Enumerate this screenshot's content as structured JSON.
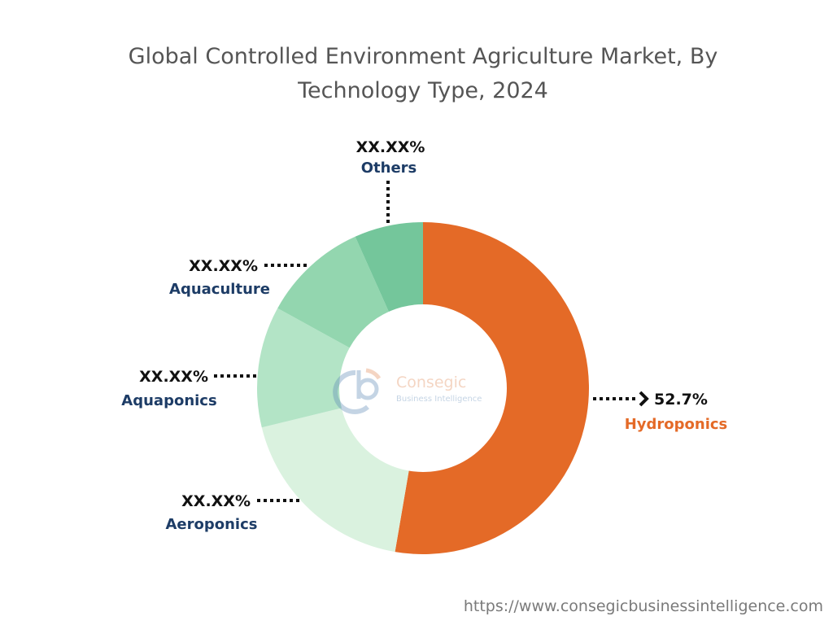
{
  "chart_data": {
    "type": "pie",
    "variant": "donut",
    "title_line1": "Global Controlled Environment Agriculture Market, By",
    "title_line2": "Technology Type, 2024",
    "slices": [
      {
        "name": "Hydroponics",
        "value": 52.7,
        "label": "52.7%",
        "color": "#E46A27",
        "label_color": "#E46A27"
      },
      {
        "name": "Aeroponics",
        "value": 18.5,
        "label": "XX.XX%",
        "color": "#DAF2DF",
        "label_color": "#1d3c66"
      },
      {
        "name": "Aquaponics",
        "value": 11.8,
        "label": "XX.XX%",
        "color": "#B3E4C6",
        "label_color": "#1d3c66"
      },
      {
        "name": "Aquaculture",
        "value": 10.3,
        "label": "XX.XX%",
        "color": "#93D6AF",
        "label_color": "#1d3c66"
      },
      {
        "name": "Others",
        "value": 6.7,
        "label": "XX.XX%",
        "color": "#74C69B",
        "label_color": "#1d3c66"
      }
    ],
    "direction": "clockwise from top"
  },
  "logo": {
    "name": "Consegic",
    "tagline": "Business Intelligence"
  },
  "footer_url": "https://www.consegicbusinessintelligence.com"
}
